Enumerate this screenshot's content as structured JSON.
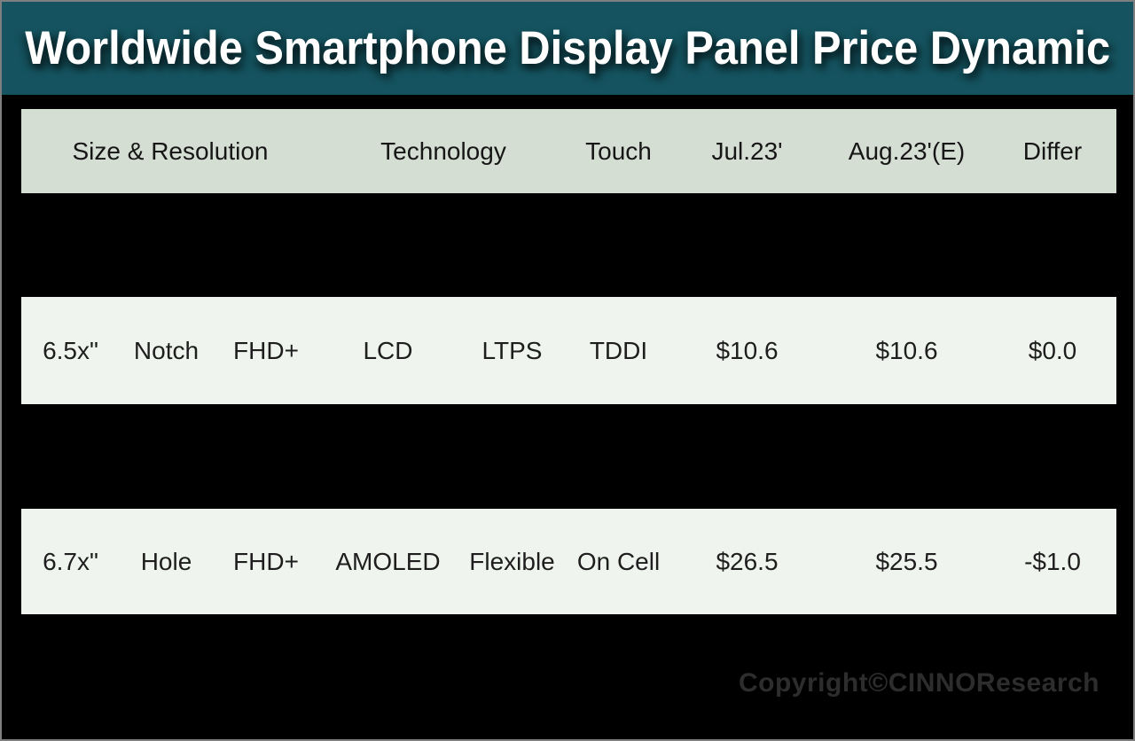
{
  "chart_data": {
    "type": "table",
    "title": "Worldwide Smartphone Display Panel Price Dynamic",
    "header": {
      "size_resolution": "Size & Resolution",
      "technology": "Technology",
      "touch": "Touch",
      "jul": "Jul.23'",
      "aug": "Aug.23'(E)",
      "differ": "Differ"
    },
    "rows": [
      {
        "size": "6.5x\"",
        "cutout": "Notch",
        "resolution": "FHD+",
        "tech_type": "LCD",
        "tech_backplane": "LTPS",
        "touch": "TDDI",
        "jul_price": "$10.6",
        "aug_price": "$10.6",
        "differ": "$0.0"
      },
      {
        "size": "6.7x\"",
        "cutout": "Hole",
        "resolution": "FHD+",
        "tech_type": "AMOLED",
        "tech_backplane": "Flexible",
        "touch": "On Cell",
        "jul_price": "$26.5",
        "aug_price": "$25.5",
        "differ": "-$1.0"
      }
    ],
    "layout_hints": {
      "row_months": [
        "Jul.23'",
        "Aug.23'(E)"
      ],
      "price_unit": "USD"
    }
  },
  "footer": {
    "copyright": "Copyright©CINNOResearch"
  },
  "colors": {
    "teal": "#14535f",
    "header_row": "#d5ded3",
    "data_row": "#f0f4ee",
    "background": "#000000",
    "border": "#7f7f7f",
    "copyright_text": "#2d2d2d"
  }
}
